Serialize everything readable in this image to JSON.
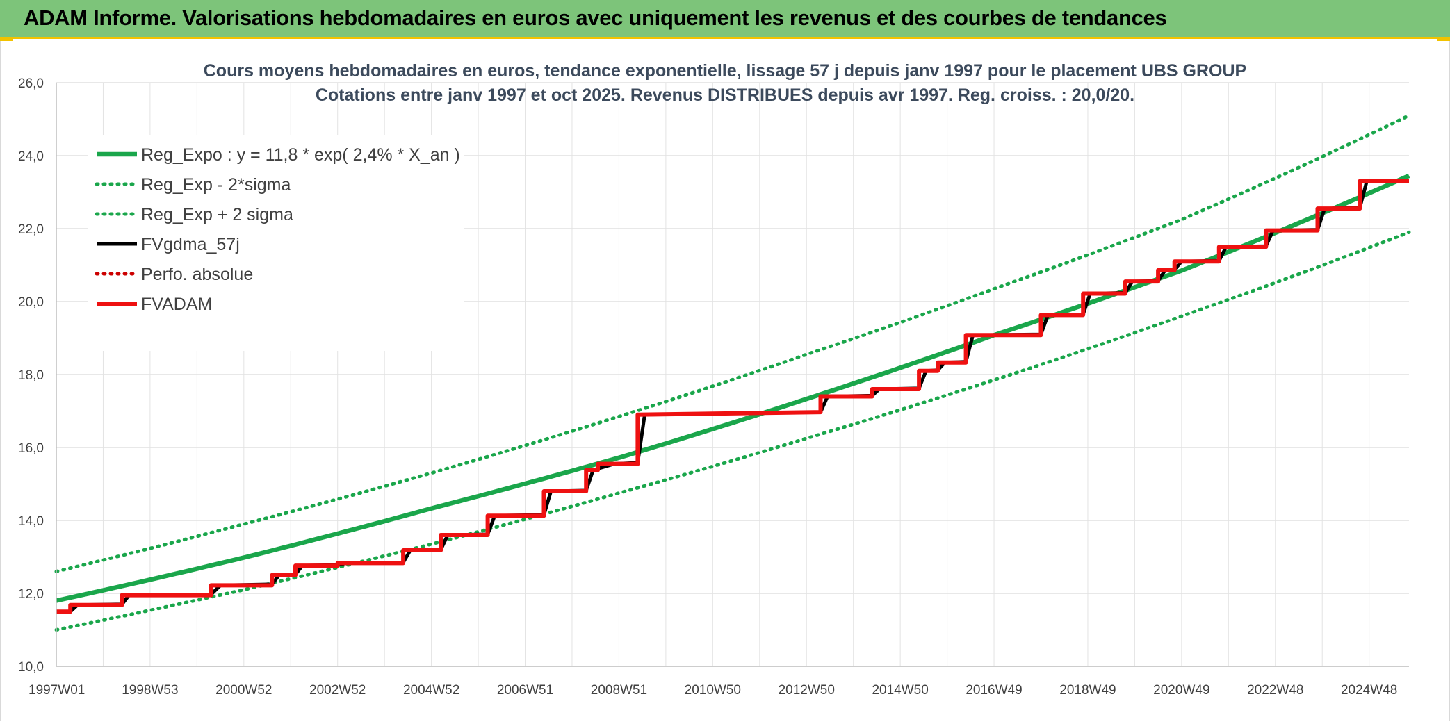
{
  "header": {
    "title": "ADAM Informe. Valorisations hebdomadaires en euros avec uniquement les revenus et des courbes de tendances"
  },
  "colors": {
    "banner": "#7dc47a",
    "accent_corner": "#f2c200",
    "reg_expo": "#1aa64b",
    "fvgdma": "#000000",
    "fvadam": "#ee1111",
    "perfo": "#cc0000"
  },
  "chart_data": {
    "type": "line",
    "title_lines": [
      "Cours moyens hebdomadaires en euros, tendance exponentielle, lissage 57 j depuis janv 1997 pour le placement UBS GROUP",
      "Cotations entre janv 1997 et oct 2025. Revenus DISTRIBUES depuis avr 1997. Reg. croiss. : 20,0/20."
    ],
    "xlabel": "",
    "ylabel": "",
    "ylim": [
      10,
      26
    ],
    "y_ticks": [
      "10,0",
      "12,0",
      "14,0",
      "16,0",
      "18,0",
      "20,0",
      "22,0",
      "24,0",
      "26,0"
    ],
    "xlim": [
      1997.0,
      2025.85
    ],
    "x_ticks": [
      {
        "label": "1997W01",
        "x": 1997.0
      },
      {
        "label": "1998W53",
        "x": 1999.0
      },
      {
        "label": "2000W52",
        "x": 2001.0
      },
      {
        "label": "2002W52",
        "x": 2003.0
      },
      {
        "label": "2004W52",
        "x": 2005.0
      },
      {
        "label": "2006W51",
        "x": 2007.0
      },
      {
        "label": "2008W51",
        "x": 2009.0
      },
      {
        "label": "2010W50",
        "x": 2011.0
      },
      {
        "label": "2012W50",
        "x": 2013.0
      },
      {
        "label": "2014W50",
        "x": 2015.0
      },
      {
        "label": "2016W49",
        "x": 2017.0
      },
      {
        "label": "2018W49",
        "x": 2019.0
      },
      {
        "label": "2020W49",
        "x": 2021.0
      },
      {
        "label": "2022W48",
        "x": 2023.0
      },
      {
        "label": "2024W48",
        "x": 2025.0
      }
    ],
    "legend_placement": "top-left",
    "grid": true,
    "series": [
      {
        "name": "Reg_Expo : y = 11,8 * exp( 2,4% *  X_an )",
        "style": "solid-thick",
        "color": "#1aa64b",
        "points": [
          [
            1997.0,
            11.8
          ],
          [
            2001.0,
            12.98
          ],
          [
            2005.0,
            14.33
          ],
          [
            2009.0,
            15.72
          ],
          [
            2013.0,
            17.33
          ],
          [
            2017.0,
            19.08
          ],
          [
            2021.0,
            20.85
          ],
          [
            2025.85,
            23.45
          ]
        ]
      },
      {
        "name": "Reg_Exp - 2*sigma",
        "style": "dotted",
        "color": "#1aa64b",
        "points": [
          [
            1997.0,
            11.0
          ],
          [
            2001.0,
            12.1
          ],
          [
            2005.0,
            13.35
          ],
          [
            2009.0,
            14.75
          ],
          [
            2013.0,
            16.25
          ],
          [
            2017.0,
            17.85
          ],
          [
            2021.0,
            19.6
          ],
          [
            2025.85,
            21.9
          ]
        ]
      },
      {
        "name": "Reg_Exp + 2 sigma",
        "style": "dotted",
        "color": "#1aa64b",
        "points": [
          [
            1997.0,
            12.6
          ],
          [
            2001.0,
            13.9
          ],
          [
            2005.0,
            15.3
          ],
          [
            2009.0,
            16.85
          ],
          [
            2013.0,
            18.55
          ],
          [
            2017.0,
            20.35
          ],
          [
            2021.0,
            22.25
          ],
          [
            2025.85,
            25.1
          ]
        ]
      },
      {
        "name": "FVgdma_57j",
        "style": "solid",
        "color": "#000000",
        "points": [
          [
            1997.0,
            11.5
          ],
          [
            1997.3,
            11.5
          ],
          [
            1997.45,
            11.68
          ],
          [
            1998.4,
            11.7
          ],
          [
            1998.55,
            11.95
          ],
          [
            2000.3,
            11.97
          ],
          [
            2000.5,
            12.22
          ],
          [
            2001.6,
            12.25
          ],
          [
            2001.75,
            12.5
          ],
          [
            2002.1,
            12.52
          ],
          [
            2002.25,
            12.76
          ],
          [
            2003.0,
            12.78
          ],
          [
            2003.2,
            12.83
          ],
          [
            2004.4,
            12.85
          ],
          [
            2004.55,
            13.18
          ],
          [
            2005.2,
            13.2
          ],
          [
            2005.35,
            13.6
          ],
          [
            2006.2,
            13.62
          ],
          [
            2006.35,
            14.13
          ],
          [
            2007.4,
            14.15
          ],
          [
            2007.55,
            14.8
          ],
          [
            2008.3,
            14.82
          ],
          [
            2008.45,
            15.38
          ],
          [
            2008.9,
            15.55
          ],
          [
            2009.4,
            15.58
          ],
          [
            2009.55,
            16.9
          ],
          [
            2013.3,
            16.97
          ],
          [
            2013.45,
            17.4
          ],
          [
            2014.4,
            17.42
          ],
          [
            2014.55,
            17.6
          ],
          [
            2015.4,
            17.62
          ],
          [
            2015.55,
            18.1
          ],
          [
            2015.8,
            18.12
          ],
          [
            2015.95,
            18.33
          ],
          [
            2016.4,
            18.35
          ],
          [
            2016.55,
            19.08
          ],
          [
            2018.0,
            19.1
          ],
          [
            2018.15,
            19.63
          ],
          [
            2018.9,
            19.65
          ],
          [
            2019.05,
            20.22
          ],
          [
            2019.8,
            20.24
          ],
          [
            2019.95,
            20.55
          ],
          [
            2020.5,
            20.57
          ],
          [
            2020.65,
            20.86
          ],
          [
            2020.85,
            20.88
          ],
          [
            2021.0,
            21.1
          ],
          [
            2021.8,
            21.12
          ],
          [
            2021.95,
            21.5
          ],
          [
            2022.8,
            21.52
          ],
          [
            2022.95,
            21.95
          ],
          [
            2023.9,
            21.97
          ],
          [
            2024.05,
            22.55
          ],
          [
            2024.8,
            22.57
          ],
          [
            2024.95,
            23.3
          ],
          [
            2025.85,
            23.3
          ]
        ]
      },
      {
        "name": "Perfo. absolue",
        "style": "dotted",
        "color": "#cc0000",
        "points": []
      },
      {
        "name": "FVADAM",
        "style": "step-thick",
        "color": "#ee1111",
        "points": [
          [
            1997.0,
            11.5
          ],
          [
            1997.3,
            11.5
          ],
          [
            1997.3,
            11.68
          ],
          [
            1998.4,
            11.68
          ],
          [
            1998.4,
            11.95
          ],
          [
            2000.3,
            11.95
          ],
          [
            2000.3,
            12.22
          ],
          [
            2001.6,
            12.22
          ],
          [
            2001.6,
            12.5
          ],
          [
            2002.1,
            12.5
          ],
          [
            2002.1,
            12.76
          ],
          [
            2003.0,
            12.76
          ],
          [
            2003.0,
            12.83
          ],
          [
            2004.4,
            12.83
          ],
          [
            2004.4,
            13.18
          ],
          [
            2005.2,
            13.18
          ],
          [
            2005.2,
            13.6
          ],
          [
            2006.2,
            13.6
          ],
          [
            2006.2,
            14.13
          ],
          [
            2007.4,
            14.13
          ],
          [
            2007.4,
            14.8
          ],
          [
            2008.3,
            14.8
          ],
          [
            2008.3,
            15.38
          ],
          [
            2008.55,
            15.38
          ],
          [
            2008.55,
            15.55
          ],
          [
            2009.4,
            15.55
          ],
          [
            2009.4,
            16.9
          ],
          [
            2013.3,
            16.97
          ],
          [
            2013.3,
            17.4
          ],
          [
            2014.4,
            17.4
          ],
          [
            2014.4,
            17.6
          ],
          [
            2015.4,
            17.6
          ],
          [
            2015.4,
            18.1
          ],
          [
            2015.8,
            18.1
          ],
          [
            2015.8,
            18.33
          ],
          [
            2016.4,
            18.33
          ],
          [
            2016.4,
            19.08
          ],
          [
            2018.0,
            19.08
          ],
          [
            2018.0,
            19.63
          ],
          [
            2018.9,
            19.63
          ],
          [
            2018.9,
            20.22
          ],
          [
            2019.8,
            20.22
          ],
          [
            2019.8,
            20.55
          ],
          [
            2020.5,
            20.55
          ],
          [
            2020.5,
            20.86
          ],
          [
            2020.85,
            20.86
          ],
          [
            2020.85,
            21.1
          ],
          [
            2021.8,
            21.1
          ],
          [
            2021.8,
            21.5
          ],
          [
            2022.8,
            21.5
          ],
          [
            2022.8,
            21.95
          ],
          [
            2023.9,
            21.95
          ],
          [
            2023.9,
            22.55
          ],
          [
            2024.8,
            22.55
          ],
          [
            2024.8,
            23.3
          ],
          [
            2025.85,
            23.3
          ]
        ]
      }
    ]
  }
}
